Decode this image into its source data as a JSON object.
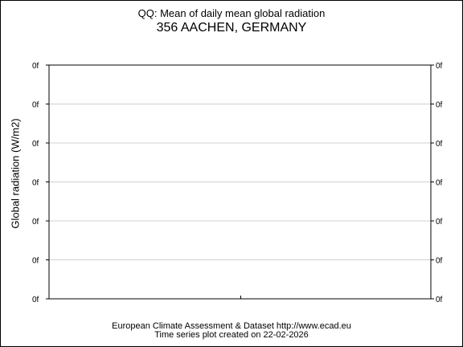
{
  "chart_data": {
    "type": "line",
    "title": "QQ: Mean of daily mean global radiation",
    "subtitle": "356 AACHEN, GERMANY",
    "xlabel": "",
    "ylabel": "Global radiation (W/m2)",
    "y_tick_labels": [
      "0f",
      "0f",
      "0f",
      "0f",
      "0f",
      "0f",
      "0f"
    ],
    "series": [],
    "grid": true
  },
  "footer": {
    "line1": "European Climate Assessment & Dataset  http://www.ecad.eu",
    "line2": "Time series plot created on 22-02-2026"
  }
}
